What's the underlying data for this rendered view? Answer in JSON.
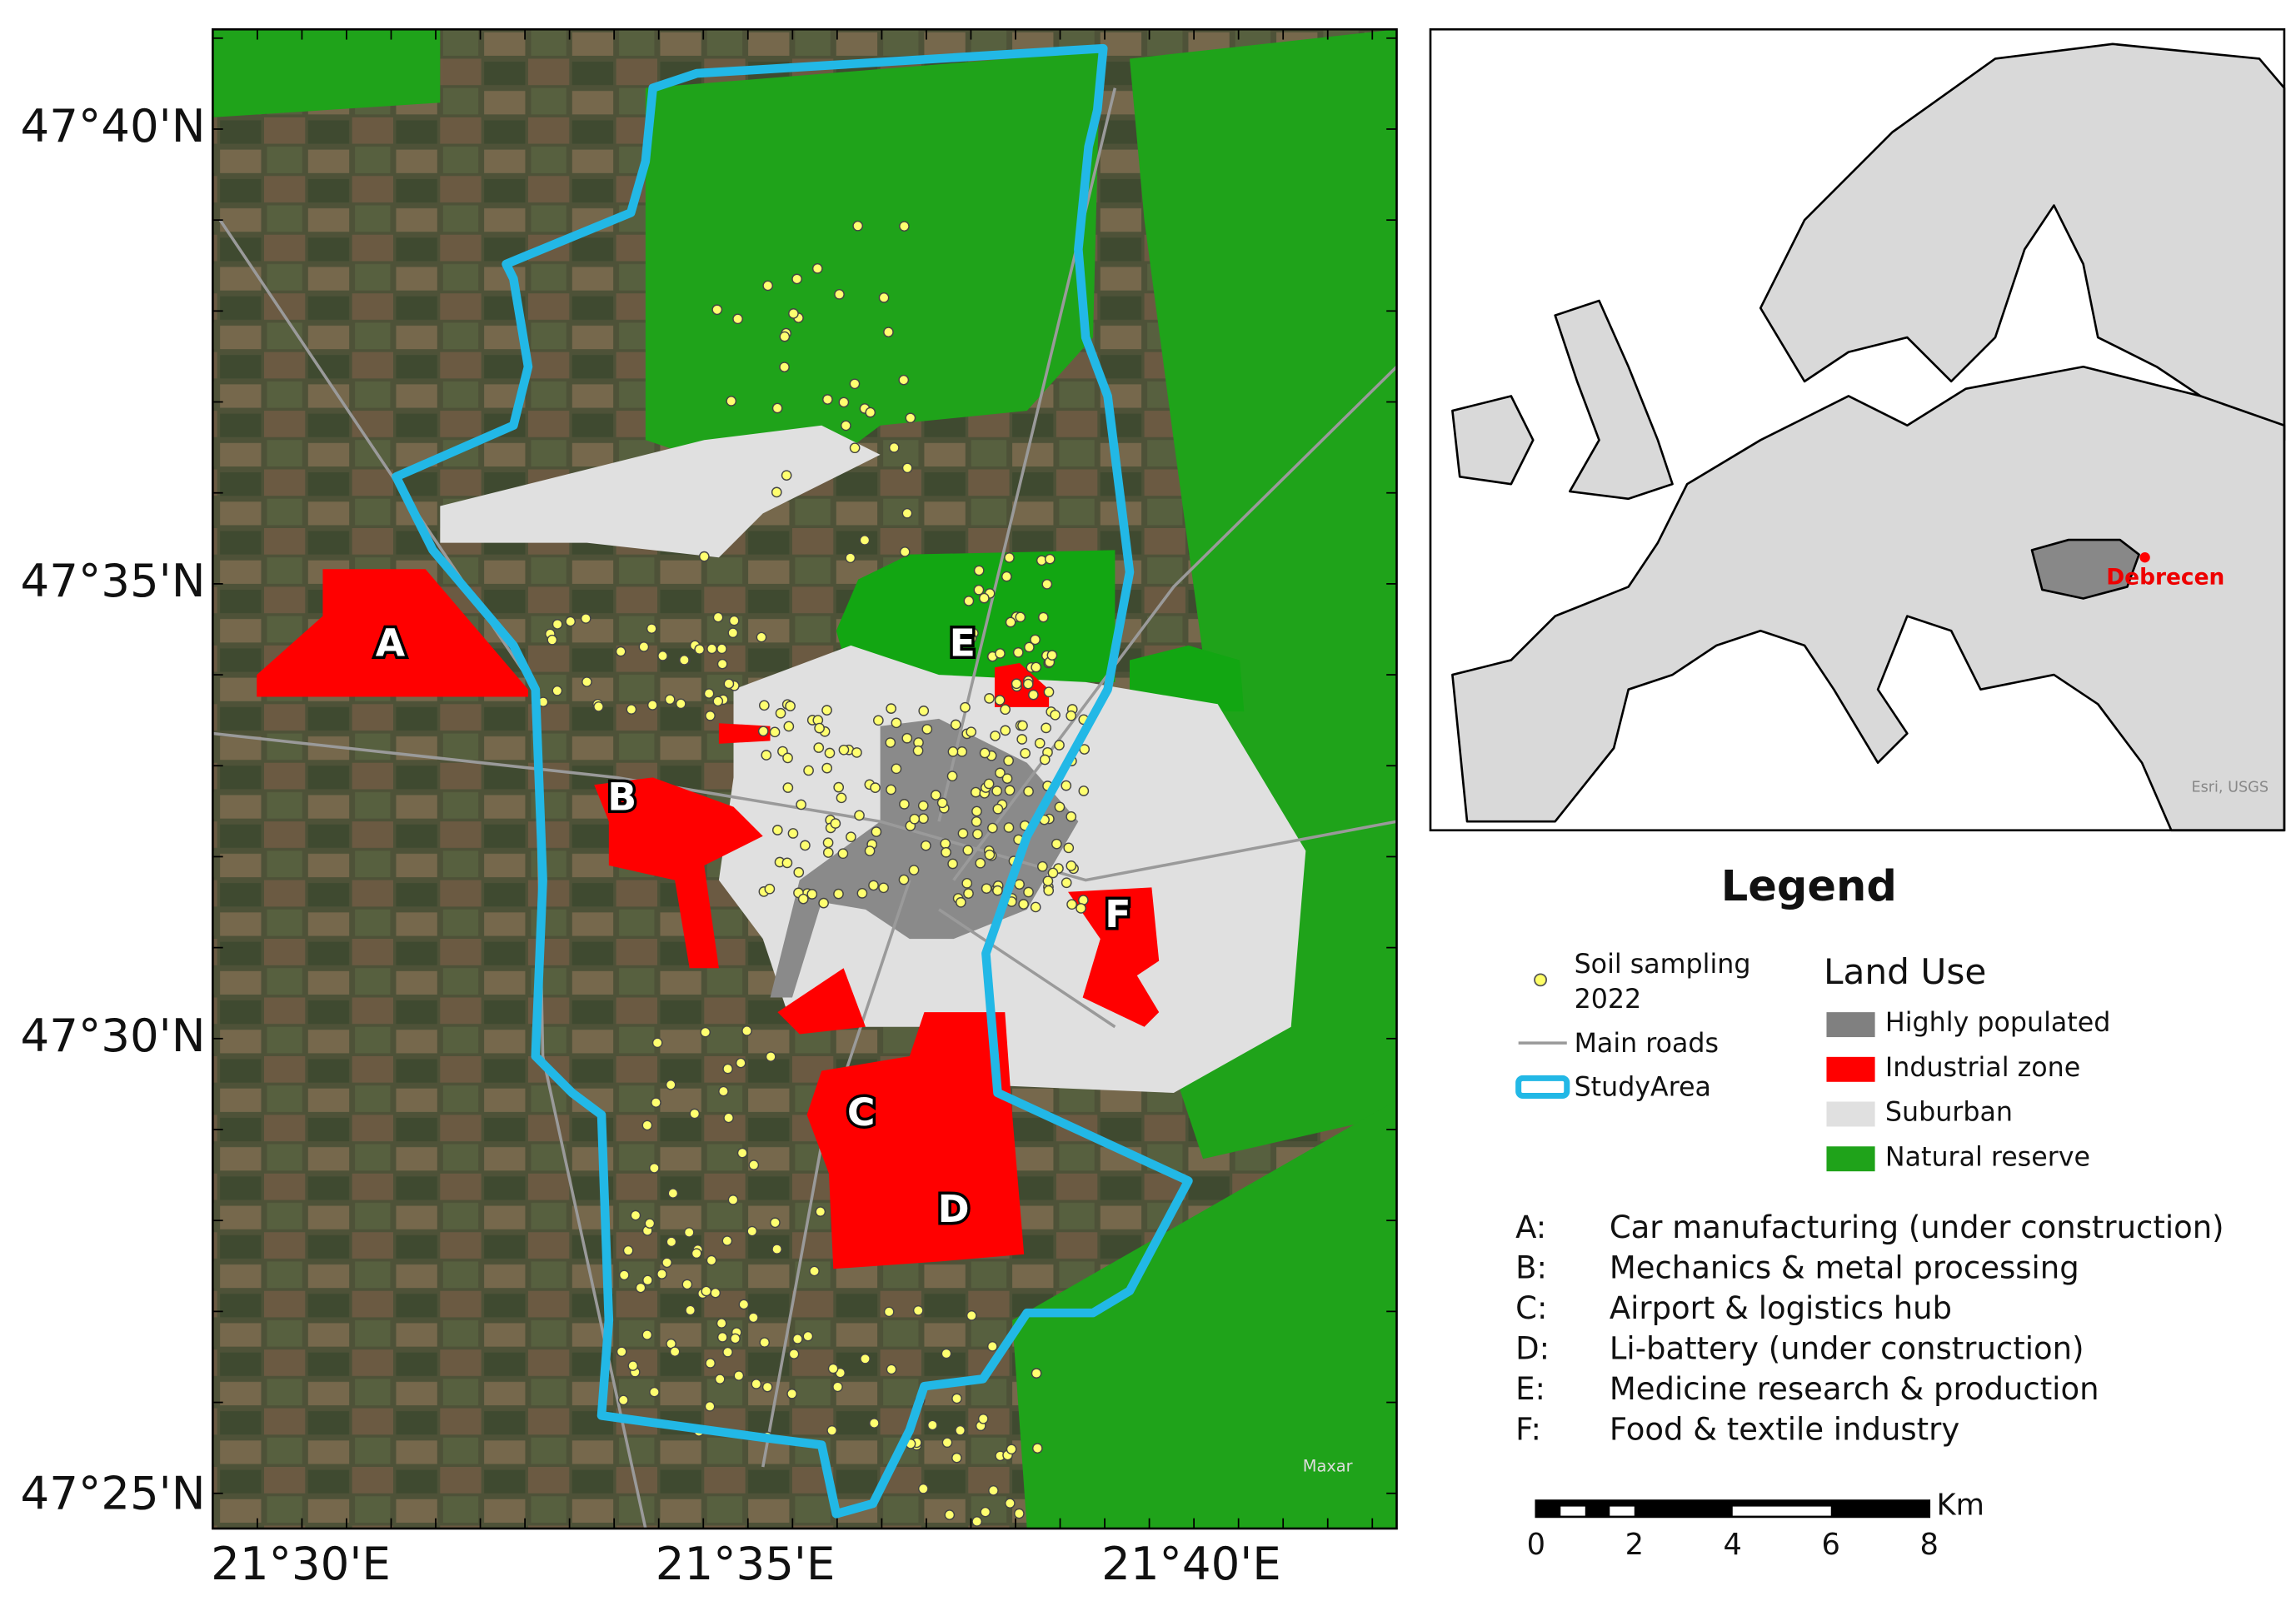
{
  "map": {
    "lat_labels": [
      "47°40'N",
      "47°35'N",
      "47°30'N",
      "47°25'N"
    ],
    "lon_labels": [
      "21°30'E",
      "21°35'E",
      "21°40'E"
    ],
    "zones": [
      "A",
      "B",
      "C",
      "D",
      "E",
      "F"
    ],
    "credit": "Maxar"
  },
  "inset": {
    "city": "Debrecen",
    "credit": "Esri, USGS"
  },
  "legend": {
    "title": "Legend",
    "soil_sampling": [
      "Soil sampling",
      "2022"
    ],
    "main_roads": "Main roads",
    "study_area": "StudyArea",
    "land_use_title": "Land Use",
    "land_use": [
      "Highly populated",
      "Industrial zone",
      "Suburban",
      "Natural reserve"
    ],
    "descriptions": [
      {
        "key": "A:",
        "text": "Car manufacturing (under construction)"
      },
      {
        "key": "B:",
        "text": "Mechanics & metal processing"
      },
      {
        "key": "C:",
        "text": "Airport & logistics hub"
      },
      {
        "key": "D:",
        "text": "Li-battery (under construction)"
      },
      {
        "key": "E:",
        "text": "Medicine research & production"
      },
      {
        "key": "F:",
        "text": "Food & textile industry"
      }
    ]
  },
  "scale_bar": {
    "unit": "Km",
    "labels": [
      0,
      2,
      4,
      6,
      8
    ]
  }
}
